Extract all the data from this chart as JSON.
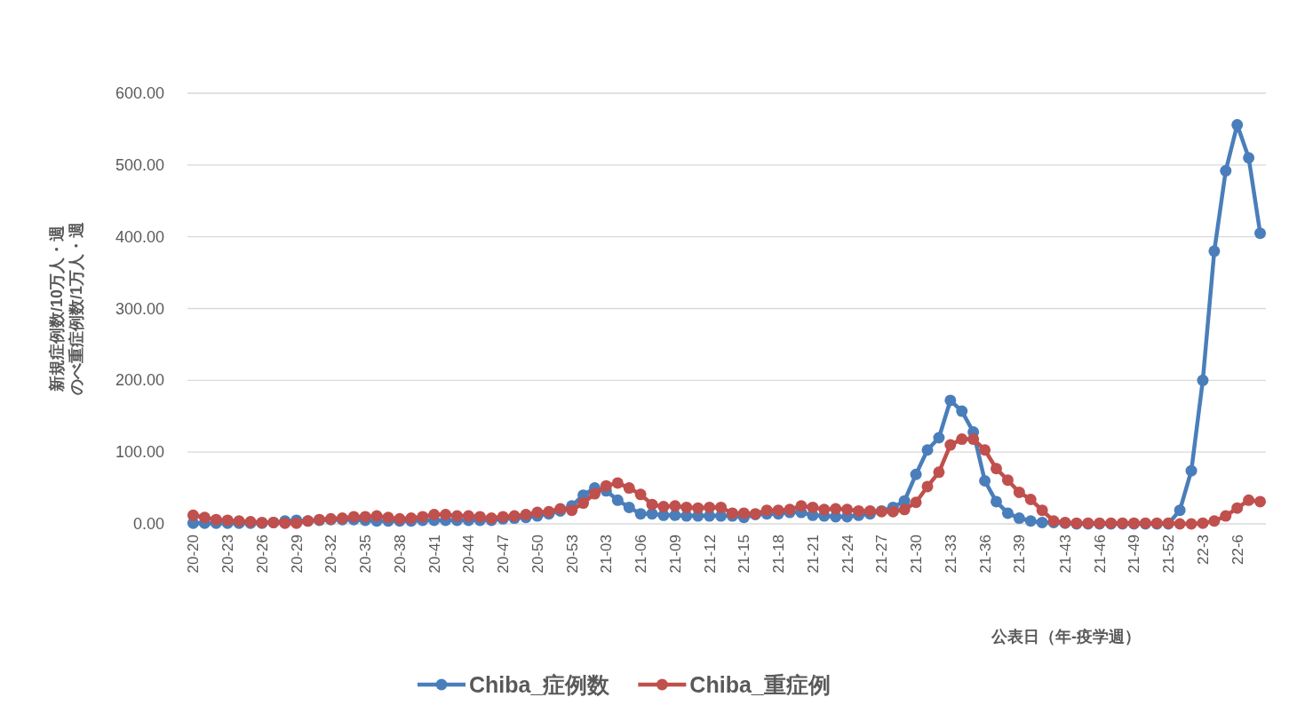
{
  "chart_data": {
    "type": "line",
    "ylabel": "新規症例数/10万人・週のべ重症例数/1万人・週",
    "xlabel": "公表日（年-疫学週）",
    "categories": [
      "20-20",
      null,
      null,
      "20-23",
      null,
      null,
      "20-26",
      null,
      null,
      "20-29",
      null,
      null,
      "20-32",
      null,
      null,
      "20-35",
      null,
      null,
      "20-38",
      null,
      null,
      "20-41",
      null,
      null,
      "20-44",
      null,
      null,
      "20-47",
      null,
      null,
      "20-50",
      null,
      null,
      "20-53",
      null,
      null,
      "21-03",
      null,
      null,
      "21-06",
      null,
      null,
      "21-09",
      null,
      null,
      "21-12",
      null,
      null,
      "21-15",
      null,
      null,
      "21-18",
      null,
      null,
      "21-21",
      null,
      null,
      "21-24",
      null,
      null,
      "21-27",
      null,
      null,
      "21-30",
      null,
      null,
      "21-33",
      null,
      null,
      "21-36",
      null,
      null,
      "21-39",
      null,
      null,
      null,
      "21-43",
      null,
      null,
      "21-46",
      null,
      null,
      "21-49",
      null,
      null,
      "21-52",
      null,
      null,
      "22-3",
      null,
      null,
      "22-6",
      null,
      null
    ],
    "series": [
      {
        "name": "Chiba_症例数",
        "color": "#4a7ebb",
        "values": [
          1,
          1,
          1,
          1,
          1,
          1,
          1,
          2,
          4,
          5,
          4,
          5,
          6,
          6,
          6,
          5,
          4,
          4,
          4,
          4,
          5,
          5,
          5,
          5,
          5,
          5,
          5,
          7,
          8,
          9,
          11,
          14,
          18,
          25,
          40,
          50,
          46,
          33,
          23,
          14,
          14,
          12,
          12,
          11,
          11,
          11,
          11,
          11,
          9,
          13,
          14,
          14,
          16,
          16,
          12,
          11,
          10,
          10,
          12,
          14,
          18,
          23,
          32,
          69,
          103,
          120,
          172,
          157,
          128,
          60,
          31,
          15,
          8,
          4,
          2,
          2,
          1,
          0,
          0,
          0,
          0,
          0,
          0,
          0,
          0,
          0,
          19,
          74,
          200,
          380,
          492,
          556,
          510,
          405
        ]
      },
      {
        "name": "Chiba_重症例",
        "color": "#c0504d",
        "values": [
          12,
          9,
          6,
          5,
          4,
          3,
          2,
          2,
          1,
          1,
          4,
          6,
          7,
          8,
          10,
          10,
          11,
          9,
          7,
          8,
          10,
          13,
          13,
          11,
          11,
          10,
          8,
          10,
          11,
          13,
          16,
          17,
          21,
          19,
          29,
          42,
          53,
          57,
          50,
          41,
          27,
          24,
          25,
          23,
          22,
          23,
          23,
          15,
          15,
          14,
          19,
          19,
          20,
          25,
          23,
          20,
          21,
          20,
          18,
          18,
          17,
          17,
          20,
          30,
          52,
          72,
          110,
          118,
          118,
          103,
          77,
          61,
          44,
          34,
          19,
          4,
          2,
          1,
          1,
          1,
          1,
          1,
          1,
          1,
          1,
          1,
          0,
          0,
          1,
          4,
          11,
          22,
          33,
          31
        ]
      }
    ],
    "ylim": [
      0,
      600
    ],
    "yticks": [
      {
        "value": 0,
        "label": "0.00"
      },
      {
        "value": 100,
        "label": "100.00"
      },
      {
        "value": 200,
        "label": "200.00"
      },
      {
        "value": 300,
        "label": "300.00"
      },
      {
        "value": 400,
        "label": "400.00"
      },
      {
        "value": 500,
        "label": "500.00"
      },
      {
        "value": 600,
        "label": "600.00"
      }
    ],
    "grid": "y",
    "legend": "bottom",
    "marker": "circle",
    "line_style": "solid"
  }
}
